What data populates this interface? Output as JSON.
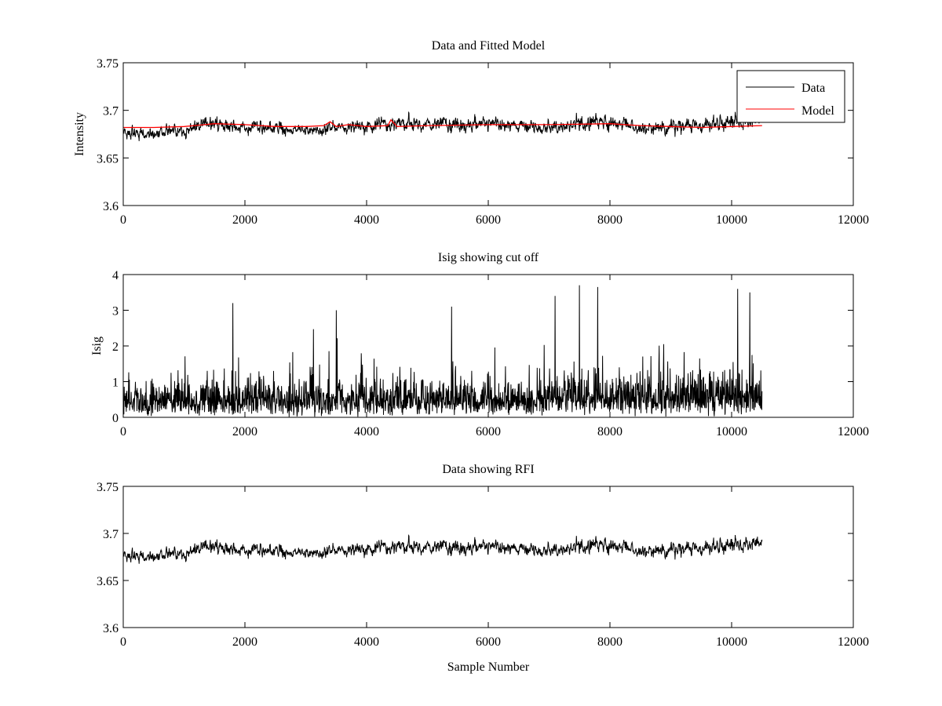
{
  "chart_data": [
    {
      "type": "line",
      "title": "Data and Fitted Model",
      "xlabel": "",
      "ylabel": "Intensity",
      "xlim": [
        0,
        12000
      ],
      "ylim": [
        3.6,
        3.75
      ],
      "xticks": [
        0,
        2000,
        4000,
        6000,
        8000,
        10000,
        12000
      ],
      "yticks": [
        3.6,
        3.65,
        3.7,
        3.75
      ],
      "xtick_labels": [
        "0",
        "2000",
        "4000",
        "6000",
        "8000",
        "10000",
        "12000"
      ],
      "ytick_labels": [
        "3.6",
        "3.65",
        "3.7",
        "3.75"
      ],
      "legend": {
        "placement": "top-right",
        "entries": [
          "Data",
          "Model"
        ]
      },
      "grid": false,
      "series": [
        {
          "name": "Data",
          "color": "#000000",
          "style": "dense noisy trace, range about 3.655 to 3.715",
          "x_range": [
            0,
            10500
          ],
          "envelope": {
            "x": [
              0,
              500,
              1000,
              1300,
              1600,
              2000,
              2500,
              3000,
              3500,
              4000,
              4400,
              5000,
              5500,
              6000,
              6500,
              7000,
              7500,
              7800,
              8200,
              8600,
              9000,
              9500,
              10000,
              10500
            ],
            "center": [
              3.677,
              3.676,
              3.679,
              3.685,
              3.687,
              3.681,
              3.682,
              3.679,
              3.681,
              3.683,
              3.686,
              3.685,
              3.686,
              3.686,
              3.684,
              3.681,
              3.687,
              3.689,
              3.685,
              3.679,
              3.684,
              3.683,
              3.689,
              3.69
            ],
            "min": [
              3.658,
              3.656,
              3.66,
              3.667,
              3.669,
              3.661,
              3.662,
              3.66,
              3.662,
              3.663,
              3.666,
              3.665,
              3.666,
              3.666,
              3.664,
              3.659,
              3.667,
              3.669,
              3.665,
              3.657,
              3.664,
              3.663,
              3.667,
              3.671
            ],
            "max": [
              3.695,
              3.693,
              3.697,
              3.704,
              3.706,
              3.699,
              3.7,
              3.697,
              3.699,
              3.701,
              3.707,
              3.704,
              3.711,
              3.705,
              3.703,
              3.7,
              3.709,
              3.716,
              3.706,
              3.699,
              3.706,
              3.702,
              3.713,
              3.71
            ]
          }
        },
        {
          "name": "Model",
          "color": "#ff0000",
          "x": [
            0,
            500,
            1000,
            1500,
            2000,
            2500,
            3000,
            3300,
            3400,
            3500,
            3700,
            4000,
            4350,
            4400,
            4500,
            5000,
            6000,
            7000,
            8000,
            8500,
            9000,
            9500,
            10000,
            10500
          ],
          "y": [
            3.682,
            3.682,
            3.683,
            3.686,
            3.685,
            3.683,
            3.683,
            3.684,
            3.688,
            3.683,
            3.685,
            3.683,
            3.684,
            3.69,
            3.683,
            3.684,
            3.685,
            3.685,
            3.686,
            3.684,
            3.683,
            3.682,
            3.683,
            3.684
          ]
        }
      ]
    },
    {
      "type": "line",
      "title": "Isig showing cut off",
      "xlabel": "",
      "ylabel": "Isig",
      "xlim": [
        0,
        12000
      ],
      "ylim": [
        0,
        4
      ],
      "xticks": [
        0,
        2000,
        4000,
        6000,
        8000,
        10000,
        12000
      ],
      "yticks": [
        0,
        1,
        2,
        3,
        4
      ],
      "xtick_labels": [
        "0",
        "2000",
        "4000",
        "6000",
        "8000",
        "10000",
        "12000"
      ],
      "ytick_labels": [
        "0",
        "1",
        "2",
        "3",
        "4"
      ],
      "grid": false,
      "series": [
        {
          "color": "#000000",
          "style": "dense non-negative spiky trace",
          "x_range": [
            0,
            10500
          ],
          "typical_max": 2.0,
          "peaks": [
            {
              "x": 1800,
              "y": 3.2
            },
            {
              "x": 3500,
              "y": 3.0
            },
            {
              "x": 5400,
              "y": 3.1
            },
            {
              "x": 7100,
              "y": 3.4
            },
            {
              "x": 7500,
              "y": 3.7
            },
            {
              "x": 7800,
              "y": 3.65
            },
            {
              "x": 10100,
              "y": 3.6
            },
            {
              "x": 10300,
              "y": 3.5
            }
          ]
        }
      ]
    },
    {
      "type": "line",
      "title": "Data showing RFI",
      "xlabel": "Sample Number",
      "ylabel": "",
      "xlim": [
        0,
        12000
      ],
      "ylim": [
        3.6,
        3.75
      ],
      "xticks": [
        0,
        2000,
        4000,
        6000,
        8000,
        10000,
        12000
      ],
      "yticks": [
        3.6,
        3.65,
        3.7,
        3.75
      ],
      "xtick_labels": [
        "0",
        "2000",
        "4000",
        "6000",
        "8000",
        "10000",
        "12000"
      ],
      "ytick_labels": [
        "3.6",
        "3.65",
        "3.7",
        "3.75"
      ],
      "grid": false,
      "series": [
        {
          "color": "#000000",
          "style": "dense noisy trace, same data as top panel",
          "x_range": [
            0,
            10500
          ]
        }
      ]
    }
  ]
}
